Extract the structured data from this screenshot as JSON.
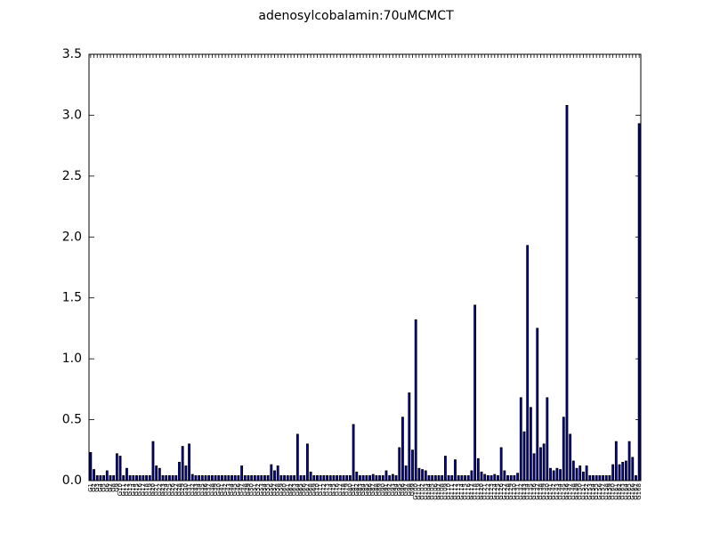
{
  "chart_data": {
    "type": "bar",
    "title": "adenosylcobalamin:70uMCMCT",
    "categories": [
      "G1",
      "G2",
      "G3",
      "G4",
      "G5",
      "G6",
      "G7",
      "G8",
      "G9",
      "G10",
      "G11",
      "G12",
      "G13",
      "G14",
      "G15",
      "G16",
      "G17",
      "G18",
      "G19",
      "G20",
      "G21",
      "G22",
      "G23",
      "G24",
      "G25",
      "G26",
      "G27",
      "G28",
      "G29",
      "G30",
      "G31",
      "G32",
      "G33",
      "G34",
      "G35",
      "G36",
      "G37",
      "G38",
      "G39",
      "G40",
      "G41",
      "G42",
      "G43",
      "G44",
      "G45",
      "G46",
      "G47",
      "G48",
      "G49",
      "G50",
      "G51",
      "G52",
      "G53",
      "G54",
      "G55",
      "G56",
      "G57",
      "G58",
      "G59",
      "G60",
      "G61",
      "G62",
      "G63",
      "G64",
      "G65",
      "G66",
      "G67",
      "G68",
      "G69",
      "G70",
      "G71",
      "G72",
      "G73",
      "G74",
      "G75",
      "G76",
      "G77",
      "G78",
      "G79",
      "G80",
      "G81",
      "G82",
      "G83",
      "G84",
      "G85",
      "G86",
      "G87",
      "G88",
      "G89",
      "G90",
      "G91",
      "G92",
      "G93",
      "G94",
      "G95",
      "G96",
      "G97",
      "G98",
      "G99",
      "G100",
      "G101",
      "G102",
      "G103",
      "G104",
      "G105",
      "G106",
      "G107",
      "G108",
      "G109",
      "G110",
      "G111",
      "G112",
      "G113",
      "G114",
      "G115",
      "G116",
      "G117",
      "G118",
      "G119",
      "G120",
      "G121",
      "G122",
      "G123",
      "G124",
      "G125",
      "G126",
      "G127",
      "G128",
      "G129",
      "G130",
      "G131",
      "G132",
      "G133",
      "G134",
      "G135",
      "G136",
      "G137",
      "G138",
      "G139",
      "G140",
      "G141",
      "G142",
      "G143",
      "G144",
      "G145",
      "G146",
      "G147",
      "G148",
      "G149",
      "G150",
      "G151",
      "G152",
      "G153",
      "G154",
      "G155",
      "G156",
      "G157",
      "G158",
      "G159",
      "G160",
      "G161",
      "G162",
      "G163",
      "G164",
      "G165",
      "G166",
      "G167",
      "G168"
    ],
    "values": [
      0.23,
      0.09,
      0.04,
      0.04,
      0.04,
      0.08,
      0.04,
      0.04,
      0.22,
      0.2,
      0.04,
      0.1,
      0.04,
      0.04,
      0.04,
      0.04,
      0.04,
      0.04,
      0.04,
      0.32,
      0.12,
      0.1,
      0.04,
      0.04,
      0.04,
      0.04,
      0.04,
      0.15,
      0.28,
      0.12,
      0.3,
      0.05,
      0.04,
      0.04,
      0.04,
      0.04,
      0.04,
      0.04,
      0.04,
      0.04,
      0.04,
      0.04,
      0.04,
      0.04,
      0.04,
      0.04,
      0.12,
      0.04,
      0.04,
      0.04,
      0.04,
      0.04,
      0.04,
      0.04,
      0.04,
      0.13,
      0.08,
      0.12,
      0.04,
      0.04,
      0.04,
      0.04,
      0.04,
      0.38,
      0.04,
      0.04,
      0.3,
      0.07,
      0.04,
      0.04,
      0.04,
      0.04,
      0.04,
      0.04,
      0.04,
      0.04,
      0.04,
      0.04,
      0.04,
      0.04,
      0.46,
      0.07,
      0.04,
      0.04,
      0.04,
      0.04,
      0.05,
      0.04,
      0.04,
      0.04,
      0.08,
      0.04,
      0.05,
      0.04,
      0.27,
      0.52,
      0.12,
      0.72,
      0.25,
      1.32,
      0.1,
      0.09,
      0.08,
      0.04,
      0.04,
      0.04,
      0.04,
      0.04,
      0.2,
      0.04,
      0.04,
      0.17,
      0.04,
      0.04,
      0.04,
      0.04,
      0.08,
      1.44,
      0.18,
      0.07,
      0.05,
      0.04,
      0.04,
      0.05,
      0.04,
      0.27,
      0.08,
      0.04,
      0.04,
      0.04,
      0.06,
      0.68,
      0.4,
      1.93,
      0.6,
      0.22,
      1.25,
      0.27,
      0.3,
      0.68,
      0.1,
      0.08,
      0.1,
      0.09,
      0.52,
      3.08,
      0.38,
      0.16,
      0.1,
      0.12,
      0.07,
      0.12,
      0.04,
      0.04,
      0.04,
      0.04,
      0.04,
      0.04,
      0.04,
      0.13,
      0.32,
      0.13,
      0.15,
      0.16,
      0.32,
      0.19,
      0.04,
      2.93
    ],
    "color": "#0000ff",
    "ylim": [
      0,
      3.5
    ],
    "yticks": [
      {
        "value": 0,
        "label": "0.0"
      },
      {
        "value": 0.5,
        "label": "0.5"
      },
      {
        "value": 1,
        "label": "1.0"
      },
      {
        "value": 1.5,
        "label": "1.5"
      },
      {
        "value": 2,
        "label": "2.0"
      },
      {
        "value": 2.5,
        "label": "2.5"
      },
      {
        "value": 3,
        "label": "3.0"
      },
      {
        "value": 3.5,
        "label": "3.5"
      }
    ],
    "grid": false
  }
}
